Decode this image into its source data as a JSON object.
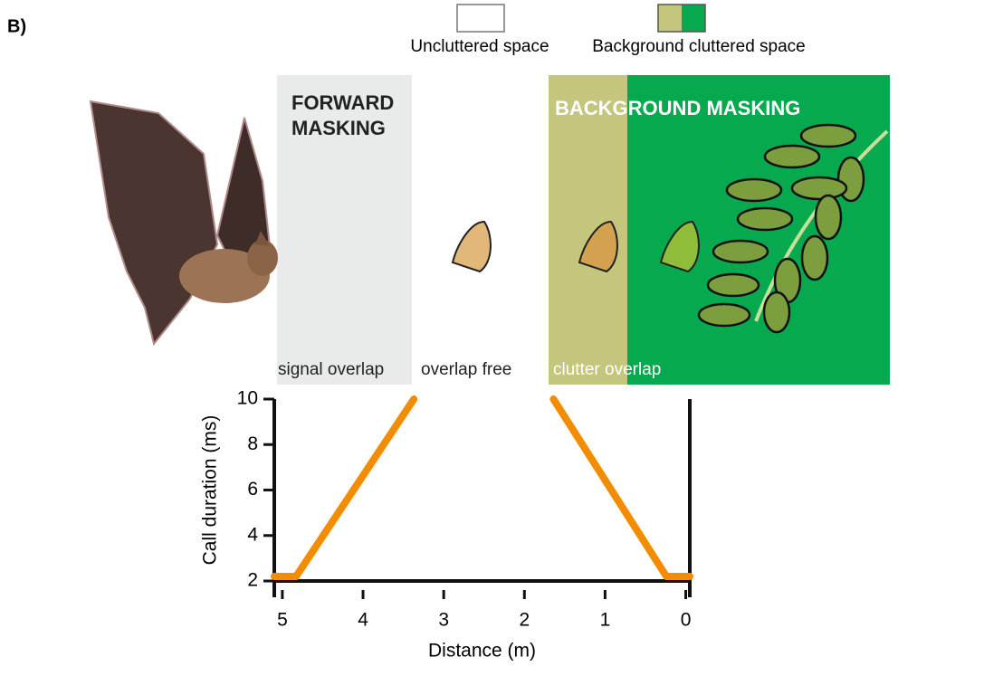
{
  "panel_label": "B)",
  "legend": {
    "items": [
      "Uncluttered space",
      "Background cluttered space"
    ]
  },
  "regions": {
    "forward": [
      "FORWARD",
      "MASKING"
    ],
    "background": "BACKGROUND MASKING",
    "zones": [
      "signal overlap",
      "overlap free",
      "clutter overlap"
    ]
  },
  "chart_data": {
    "type": "line",
    "xlabel": "Distance (m)",
    "ylabel": "Call duration  (ms)",
    "x": [
      5.1,
      4.83,
      3.37,
      2.5,
      1.64,
      0.24,
      -0.05
    ],
    "series": [
      {
        "color": "#f28c00",
        "values": [
          2.2,
          2.2,
          10,
          null,
          10,
          2.2,
          2.2
        ]
      }
    ],
    "xlim": [
      5.1,
      -0.05
    ],
    "ylim": [
      2,
      10
    ],
    "xticks": [
      5,
      4,
      3,
      2,
      1,
      0
    ],
    "yticks": [
      10,
      8,
      6,
      4,
      2
    ]
  }
}
